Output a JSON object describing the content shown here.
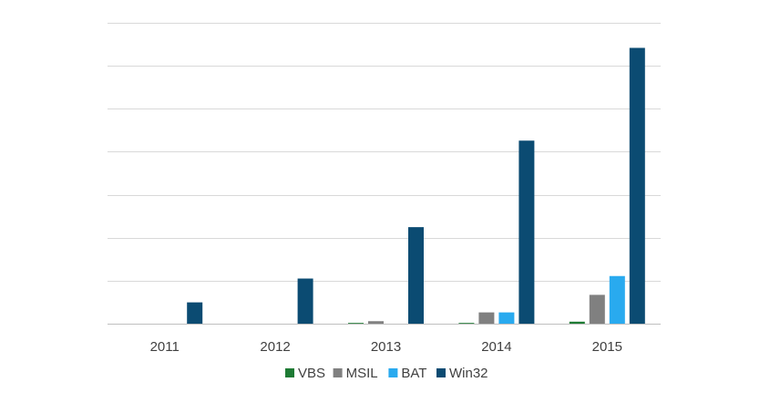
{
  "chart_data": {
    "type": "bar",
    "title": "",
    "xlabel": "",
    "ylabel": "",
    "categories": [
      "2011",
      "2012",
      "2013",
      "2014",
      "2015"
    ],
    "series": [
      {
        "name": "VBS",
        "color": "#1e7b34",
        "values": [
          0,
          0,
          0.3,
          0.3,
          0.8
        ]
      },
      {
        "name": "MSIL",
        "color": "#808080",
        "values": [
          0,
          0,
          1,
          4.5,
          11.5
        ]
      },
      {
        "name": "BAT",
        "color": "#29aaef",
        "values": [
          0,
          0,
          0,
          4.5,
          19
        ]
      },
      {
        "name": "Win32",
        "color": "#0b4b72",
        "values": [
          8.5,
          18,
          38.5,
          73,
          110
        ]
      }
    ],
    "ylim": [
      0,
      120
    ],
    "y_gridlines": [
      0,
      17.14,
      34.29,
      51.43,
      68.57,
      85.71,
      102.86,
      120
    ],
    "grid": true,
    "legend_position": "bottom",
    "y_tick_labels_shown": false
  }
}
